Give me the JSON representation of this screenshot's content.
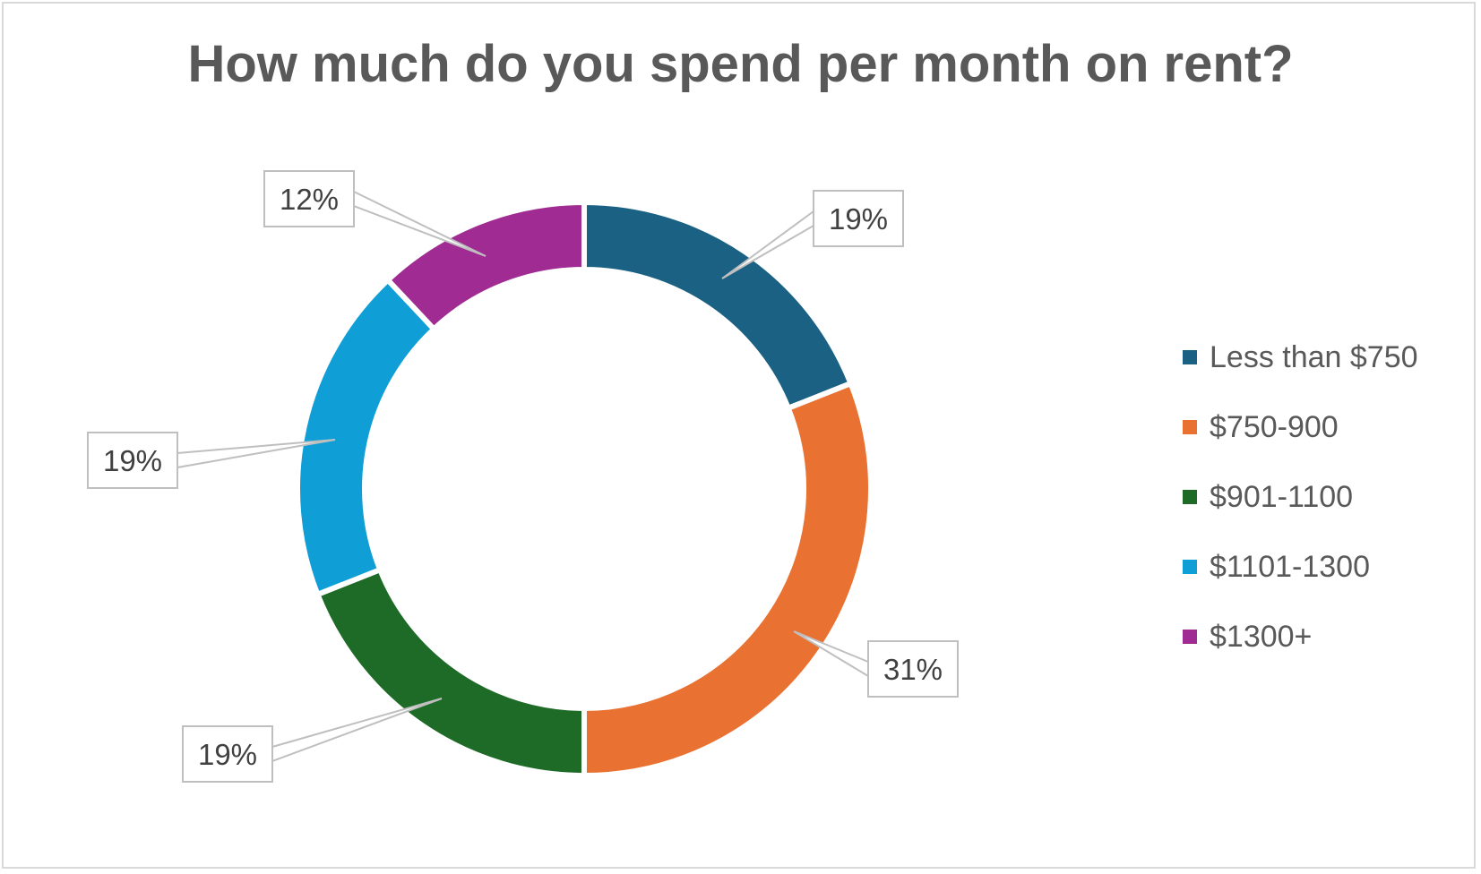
{
  "chart_data": {
    "type": "pie",
    "variant": "doughnut",
    "title": "How much do you spend per month on rent?",
    "categories": [
      "Less than $750",
      "$750-900",
      "$901-1100",
      "$1101-1300",
      "$1300+"
    ],
    "values": [
      19,
      31,
      19,
      19,
      12
    ],
    "labels": [
      "19%",
      "31%",
      "19%",
      "19%",
      "12%"
    ],
    "colors": [
      "#1a6183",
      "#e97132",
      "#1e6b27",
      "#0f9ed5",
      "#a02b93"
    ],
    "legend": "right"
  }
}
